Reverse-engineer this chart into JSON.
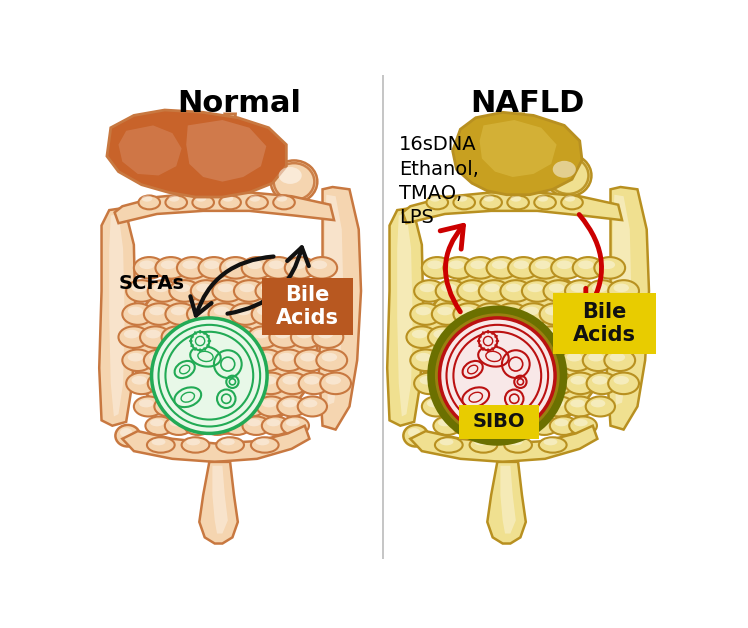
{
  "title_left": "Normal",
  "title_right": "NAFLD",
  "title_fontsize": 22,
  "title_fontweight": "bold",
  "bg_color": "#ffffff",
  "divider_color": "#bbbbbb",
  "left_label_scfas": "SCFAs",
  "left_label_bile": "Bile\nAcids",
  "right_label_bile": "Bile\nAcids",
  "right_label_sibo": "SIBO",
  "right_label_text": "16sDNA\nEthanol,\nTMAO,\nLPS",
  "liver_normal_color": "#c8632a",
  "liver_normal_light": "#d4845a",
  "liver_normal_lighter": "#e0a878",
  "liver_nafld_color": "#c8a020",
  "liver_nafld_light": "#d8b840",
  "liver_nafld_lighter": "#e8d060",
  "intestine_normal_main": "#f5d5b0",
  "intestine_normal_outline": "#c87840",
  "intestine_normal_shadow": "#e8b880",
  "intestine_nafld_main": "#f0e090",
  "intestine_nafld_outline": "#b89020",
  "intestine_nafld_shadow": "#dcc060",
  "microbe_normal_color": "#22aa55",
  "microbe_normal_fill": "#e8f8e8",
  "microbe_nafld_color": "#bb1111",
  "microbe_nafld_fill": "#f8e8e8",
  "microbe_nafld_ring": "#6b7000",
  "bile_box_color": "#b85820",
  "bile_box_nafld_color": "#e8cc00",
  "bile_text_color": "#ffffff",
  "bile_nafld_text_color": "#111111",
  "sibo_box_color": "#e8cc00",
  "sibo_text_color": "#111111",
  "arrow_normal_color": "#111111",
  "arrow_nafld_color": "#cc0000",
  "text_color": "#111111"
}
